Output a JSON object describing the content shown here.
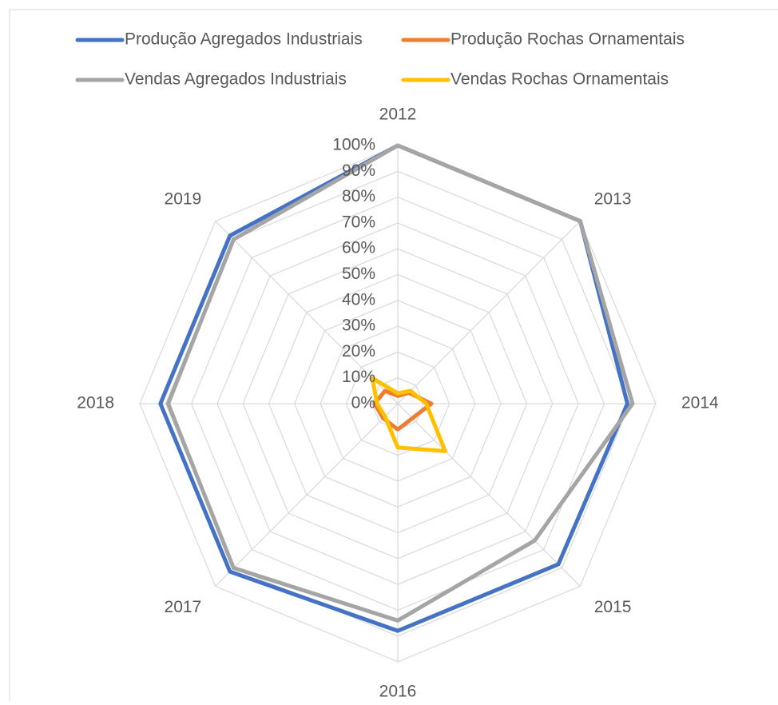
{
  "chart_data": {
    "type": "radar",
    "categories": [
      "2012",
      "2013",
      "2014",
      "2015",
      "2016",
      "2017",
      "2018",
      "2019"
    ],
    "series": [
      {
        "name": "Produção Agregados Industriais",
        "color": "#4472c4",
        "values": [
          100,
          100,
          89,
          88,
          88,
          92,
          92,
          92
        ]
      },
      {
        "name": "Produção Rochas Ornamentais",
        "color": "#ed7d31",
        "values": [
          3,
          6,
          13,
          8,
          10,
          8,
          9,
          7
        ]
      },
      {
        "name": "Vendas Agregados Industriais",
        "color": "#a5a5a5",
        "values": [
          100,
          100,
          91,
          75,
          84,
          90,
          89,
          90
        ]
      },
      {
        "name": "Vendas Rochas Ornamentais",
        "color": "#ffc000",
        "values": [
          4,
          7,
          11,
          26,
          17,
          7,
          8,
          14
        ]
      }
    ],
    "ylim": [
      0,
      100
    ],
    "yticks": [
      {
        "value": 0,
        "label": "0%"
      },
      {
        "value": 10,
        "label": "10%"
      },
      {
        "value": 20,
        "label": "20%"
      },
      {
        "value": 30,
        "label": "30%"
      },
      {
        "value": 40,
        "label": "40%"
      },
      {
        "value": 50,
        "label": "50%"
      },
      {
        "value": 60,
        "label": "60%"
      },
      {
        "value": 70,
        "label": "70%"
      },
      {
        "value": 80,
        "label": "80%"
      },
      {
        "value": 90,
        "label": "90%"
      },
      {
        "value": 100,
        "label": "100%"
      }
    ],
    "grid": true,
    "legend": "top"
  }
}
